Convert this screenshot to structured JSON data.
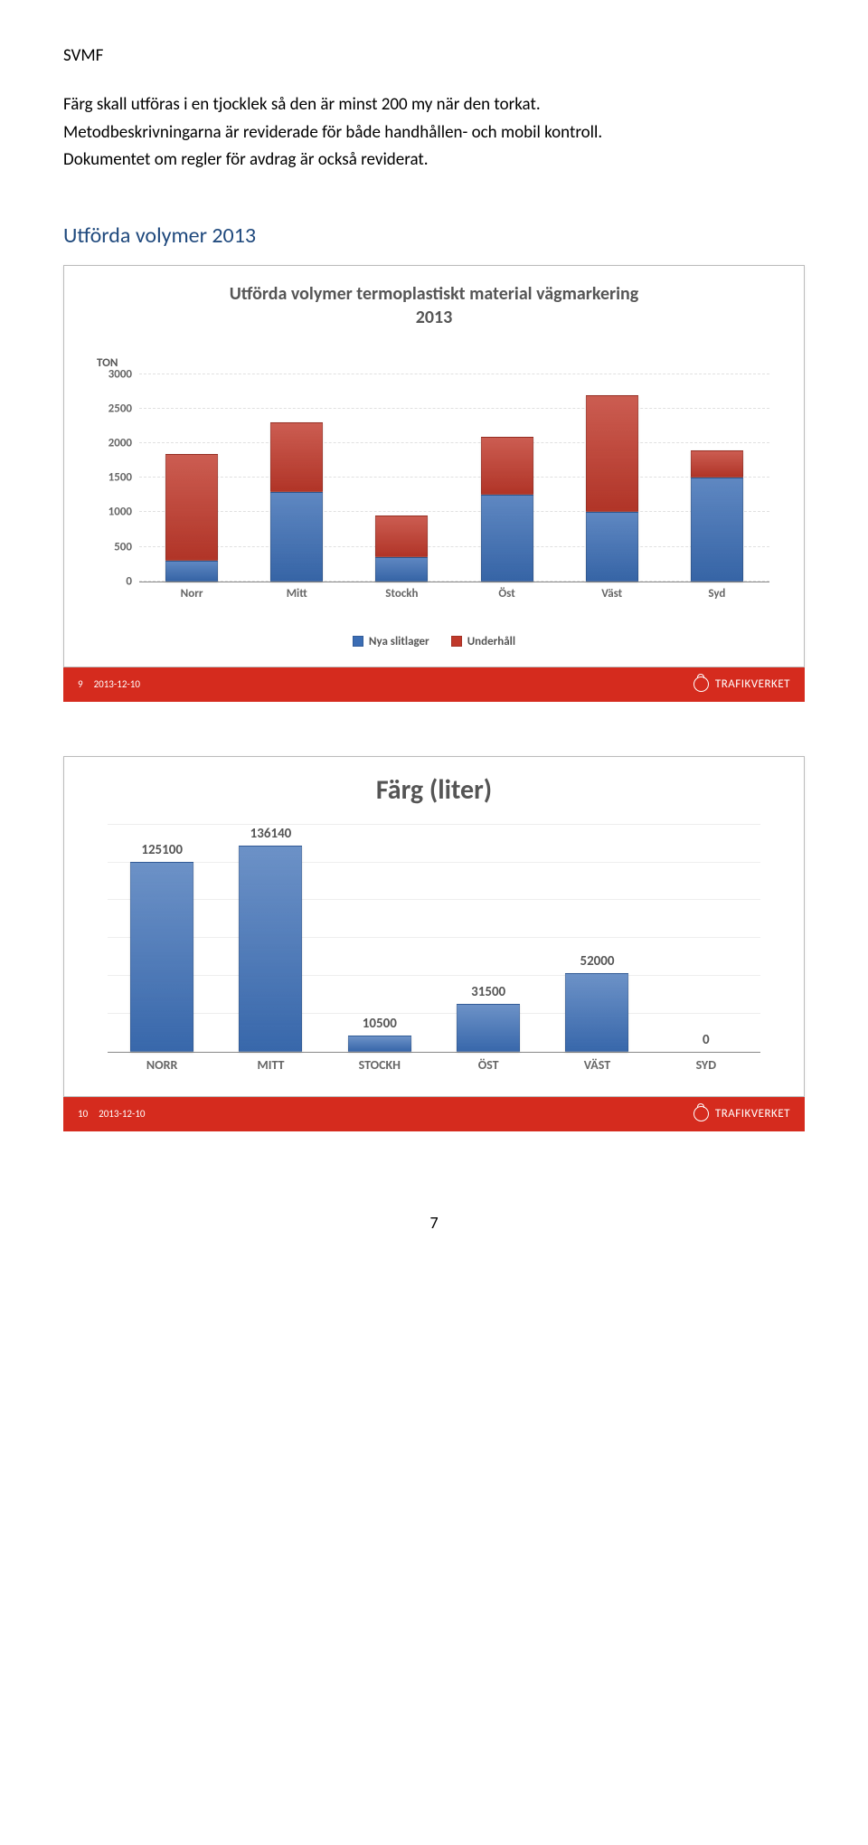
{
  "doc_header": "SVMF",
  "paragraphs": [
    "Färg skall utföras i en tjocklek så den är minst 200 my när den torkat.",
    "Metodbeskrivningarna är reviderade för både handhållen- och mobil kontroll.",
    "Dokumentet om regler för avdrag är också reviderat."
  ],
  "section_title": "Utförda volymer 2013",
  "chart1": {
    "title_line1": "Utförda volymer termoplastiskt material vägmarkering",
    "title_line2": "2013",
    "y_axis_title": "TON",
    "y_max": 3000,
    "y_ticks": [
      0,
      500,
      1000,
      1500,
      2000,
      2500,
      3000
    ],
    "categories": [
      "Norr",
      "Mitt",
      "Stockh",
      "Öst",
      "Väst",
      "Syd"
    ],
    "series": [
      {
        "name": "Nya slitlager",
        "color": "#3b6db4"
      },
      {
        "name": "Underhåll",
        "color": "#c0392b"
      }
    ],
    "data": {
      "nya": [
        300,
        1300,
        350,
        1250,
        1000,
        1500
      ],
      "underhall": [
        1550,
        1000,
        600,
        850,
        1700,
        400
      ]
    }
  },
  "chart2": {
    "title": "Färg (liter)",
    "categories": [
      "NORR",
      "MITT",
      "STOCKH",
      "ÖST",
      "VÄST",
      "SYD"
    ],
    "values": [
      125100,
      136140,
      10500,
      31500,
      52000,
      0
    ],
    "bar_color": "#3b6db4",
    "y_max": 150000,
    "grid_steps": 6
  },
  "footer": {
    "slide9": {
      "num": "9",
      "date": "2013-12-10"
    },
    "slide10": {
      "num": "10",
      "date": "2013-12-10"
    },
    "brand": "TRAFIKVERKET"
  },
  "page_number": "7"
}
